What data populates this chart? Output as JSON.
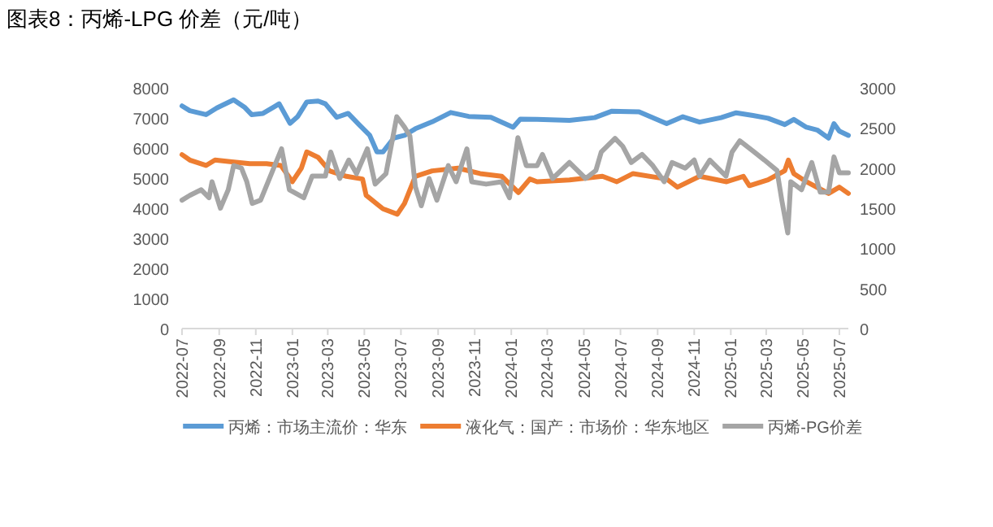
{
  "chart_data": {
    "type": "line",
    "title": "图表8：丙烯-LPG 价差（元/吨）",
    "xlim": [
      "2022-07-01",
      "2025-07-16"
    ],
    "xticks": [
      "2022-07",
      "2022-09",
      "2022-11",
      "2023-01",
      "2023-03",
      "2023-05",
      "2023-07",
      "2023-09",
      "2023-11",
      "2024-01",
      "2024-03",
      "2024-05",
      "2024-07",
      "2024-09",
      "2024-11",
      "2025-01",
      "2025-03",
      "2025-05",
      "2025-07"
    ],
    "ylim": [
      0,
      8000
    ],
    "yticks": [
      0,
      1000,
      2000,
      3000,
      4000,
      5000,
      6000,
      7000,
      8000
    ],
    "y2lim": [
      0,
      3000
    ],
    "y2ticks": [
      0,
      500,
      1000,
      1500,
      2000,
      2500,
      3000
    ],
    "legend": "bottom",
    "marker": "none",
    "line_style": "solid",
    "series": [
      {
        "name": "丙烯：市场主流价：华东",
        "color": "#5b9bd5",
        "x": [
          "2022-07-01",
          "2022-07-14",
          "2022-08-10",
          "2022-08-28",
          "2022-09-25",
          "2022-10-13",
          "2022-10-25",
          "2022-11-13",
          "2022-12-01",
          "2022-12-10",
          "2022-12-28",
          "2023-01-10",
          "2023-01-25",
          "2023-02-13",
          "2023-02-25",
          "2023-03-16",
          "2023-04-04",
          "2023-04-22",
          "2023-05-10",
          "2023-05-22",
          "2023-06-01",
          "2023-06-19",
          "2023-07-07",
          "2023-07-25",
          "2023-08-22",
          "2023-09-22",
          "2023-10-22",
          "2023-11-28",
          "2024-01-04",
          "2024-01-16",
          "2024-02-13",
          "2024-04-07",
          "2024-05-19",
          "2024-06-16",
          "2024-08-01",
          "2024-09-16",
          "2024-10-13",
          "2024-11-10",
          "2024-12-16",
          "2025-01-10",
          "2025-02-07",
          "2025-03-04",
          "2025-04-01",
          "2025-04-16",
          "2025-05-07",
          "2025-05-25",
          "2025-06-13",
          "2025-06-22",
          "2025-07-01",
          "2025-07-16"
        ],
        "values": [
          7400,
          7240,
          7110,
          7330,
          7600,
          7360,
          7110,
          7150,
          7360,
          7470,
          6820,
          7050,
          7530,
          7560,
          7470,
          7020,
          7150,
          6780,
          6420,
          5870,
          5870,
          6330,
          6420,
          6640,
          6870,
          7180,
          7050,
          7020,
          6690,
          6960,
          6950,
          6920,
          7010,
          7220,
          7200,
          6810,
          7040,
          6860,
          7010,
          7170,
          7080,
          6990,
          6780,
          6950,
          6690,
          6600,
          6330,
          6810,
          6560,
          6420
        ]
      },
      {
        "name": "液化气：国产：市场价：华东地区",
        "color": "#ed7d31",
        "x": [
          "2022-07-01",
          "2022-07-14",
          "2022-08-10",
          "2022-08-25",
          "2022-09-19",
          "2022-10-22",
          "2022-11-19",
          "2022-12-13",
          "2023-01-01",
          "2023-01-16",
          "2023-01-25",
          "2023-02-13",
          "2023-03-04",
          "2023-04-01",
          "2023-04-28",
          "2023-05-04",
          "2023-06-01",
          "2023-06-25",
          "2023-07-07",
          "2023-07-25",
          "2023-08-22",
          "2023-10-04",
          "2023-11-10",
          "2023-12-16",
          "2024-01-13",
          "2024-02-01",
          "2024-02-13",
          "2024-04-07",
          "2024-06-01",
          "2024-06-25",
          "2024-07-22",
          "2024-09-16",
          "2024-10-04",
          "2024-11-10",
          "2024-12-25",
          "2025-01-22",
          "2025-02-01",
          "2025-03-04",
          "2025-04-01",
          "2025-04-07",
          "2025-04-16",
          "2025-05-07",
          "2025-06-13",
          "2025-07-01",
          "2025-07-16"
        ],
        "values": [
          5780,
          5600,
          5420,
          5600,
          5550,
          5480,
          5480,
          5420,
          4880,
          5330,
          5870,
          5690,
          5240,
          5060,
          4970,
          4430,
          3980,
          3800,
          4160,
          5060,
          5240,
          5330,
          5150,
          5060,
          4520,
          4970,
          4880,
          4940,
          5060,
          4880,
          5150,
          4970,
          4700,
          5060,
          4880,
          5060,
          4750,
          4940,
          5250,
          5600,
          5150,
          4880,
          4490,
          4700,
          4490
        ]
      },
      {
        "name": "丙烯-PG价差",
        "color": "#a5a5a5",
        "axis": "y2",
        "x": [
          "2022-07-01",
          "2022-07-14",
          "2022-08-02",
          "2022-08-15",
          "2022-08-20",
          "2022-09-03",
          "2022-09-16",
          "2022-09-25",
          "2022-10-08",
          "2022-10-17",
          "2022-10-26",
          "2022-11-09",
          "2022-11-27",
          "2022-12-14",
          "2022-12-27",
          "2023-01-20",
          "2023-02-03",
          "2023-02-25",
          "2023-03-06",
          "2023-03-21",
          "2023-04-05",
          "2023-04-18",
          "2023-05-06",
          "2023-05-19",
          "2023-06-06",
          "2023-06-24",
          "2023-07-07",
          "2023-07-16",
          "2023-07-25",
          "2023-08-04",
          "2023-08-17",
          "2023-08-30",
          "2023-09-18",
          "2023-10-01",
          "2023-10-19",
          "2023-10-27",
          "2023-11-20",
          "2023-12-16",
          "2023-12-29",
          "2024-01-12",
          "2024-01-26",
          "2024-02-13",
          "2024-02-22",
          "2024-03-10",
          "2024-04-07",
          "2024-05-04",
          "2024-05-21",
          "2024-05-30",
          "2024-06-22",
          "2024-07-05",
          "2024-07-19",
          "2024-08-06",
          "2024-08-24",
          "2024-09-12",
          "2024-09-25",
          "2024-10-17",
          "2024-11-01",
          "2024-11-10",
          "2024-11-27",
          "2024-12-24",
          "2025-01-03",
          "2025-01-16",
          "2025-02-09",
          "2025-02-26",
          "2025-03-19",
          "2025-03-27",
          "2025-04-06",
          "2025-04-11",
          "2025-04-29",
          "2025-05-16",
          "2025-05-30",
          "2025-06-13",
          "2025-06-22",
          "2025-07-01",
          "2025-07-16"
        ],
        "values": [
          1600,
          1660,
          1730,
          1630,
          1830,
          1500,
          1730,
          2030,
          2000,
          1830,
          1560,
          1600,
          1930,
          2240,
          1730,
          1630,
          1900,
          1900,
          2200,
          1870,
          2100,
          1930,
          2240,
          1800,
          1930,
          2640,
          2510,
          2400,
          1770,
          1530,
          1870,
          1600,
          2030,
          1830,
          2240,
          1830,
          1800,
          1830,
          1630,
          2380,
          2030,
          2030,
          2170,
          1870,
          2070,
          1870,
          1970,
          2200,
          2370,
          2270,
          2070,
          2170,
          2030,
          1830,
          2070,
          2000,
          2100,
          1900,
          2100,
          1900,
          2200,
          2340,
          2200,
          2100,
          1970,
          1600,
          1190,
          1830,
          1730,
          2070,
          1700,
          1700,
          2140,
          1940,
          1940
        ]
      }
    ]
  }
}
